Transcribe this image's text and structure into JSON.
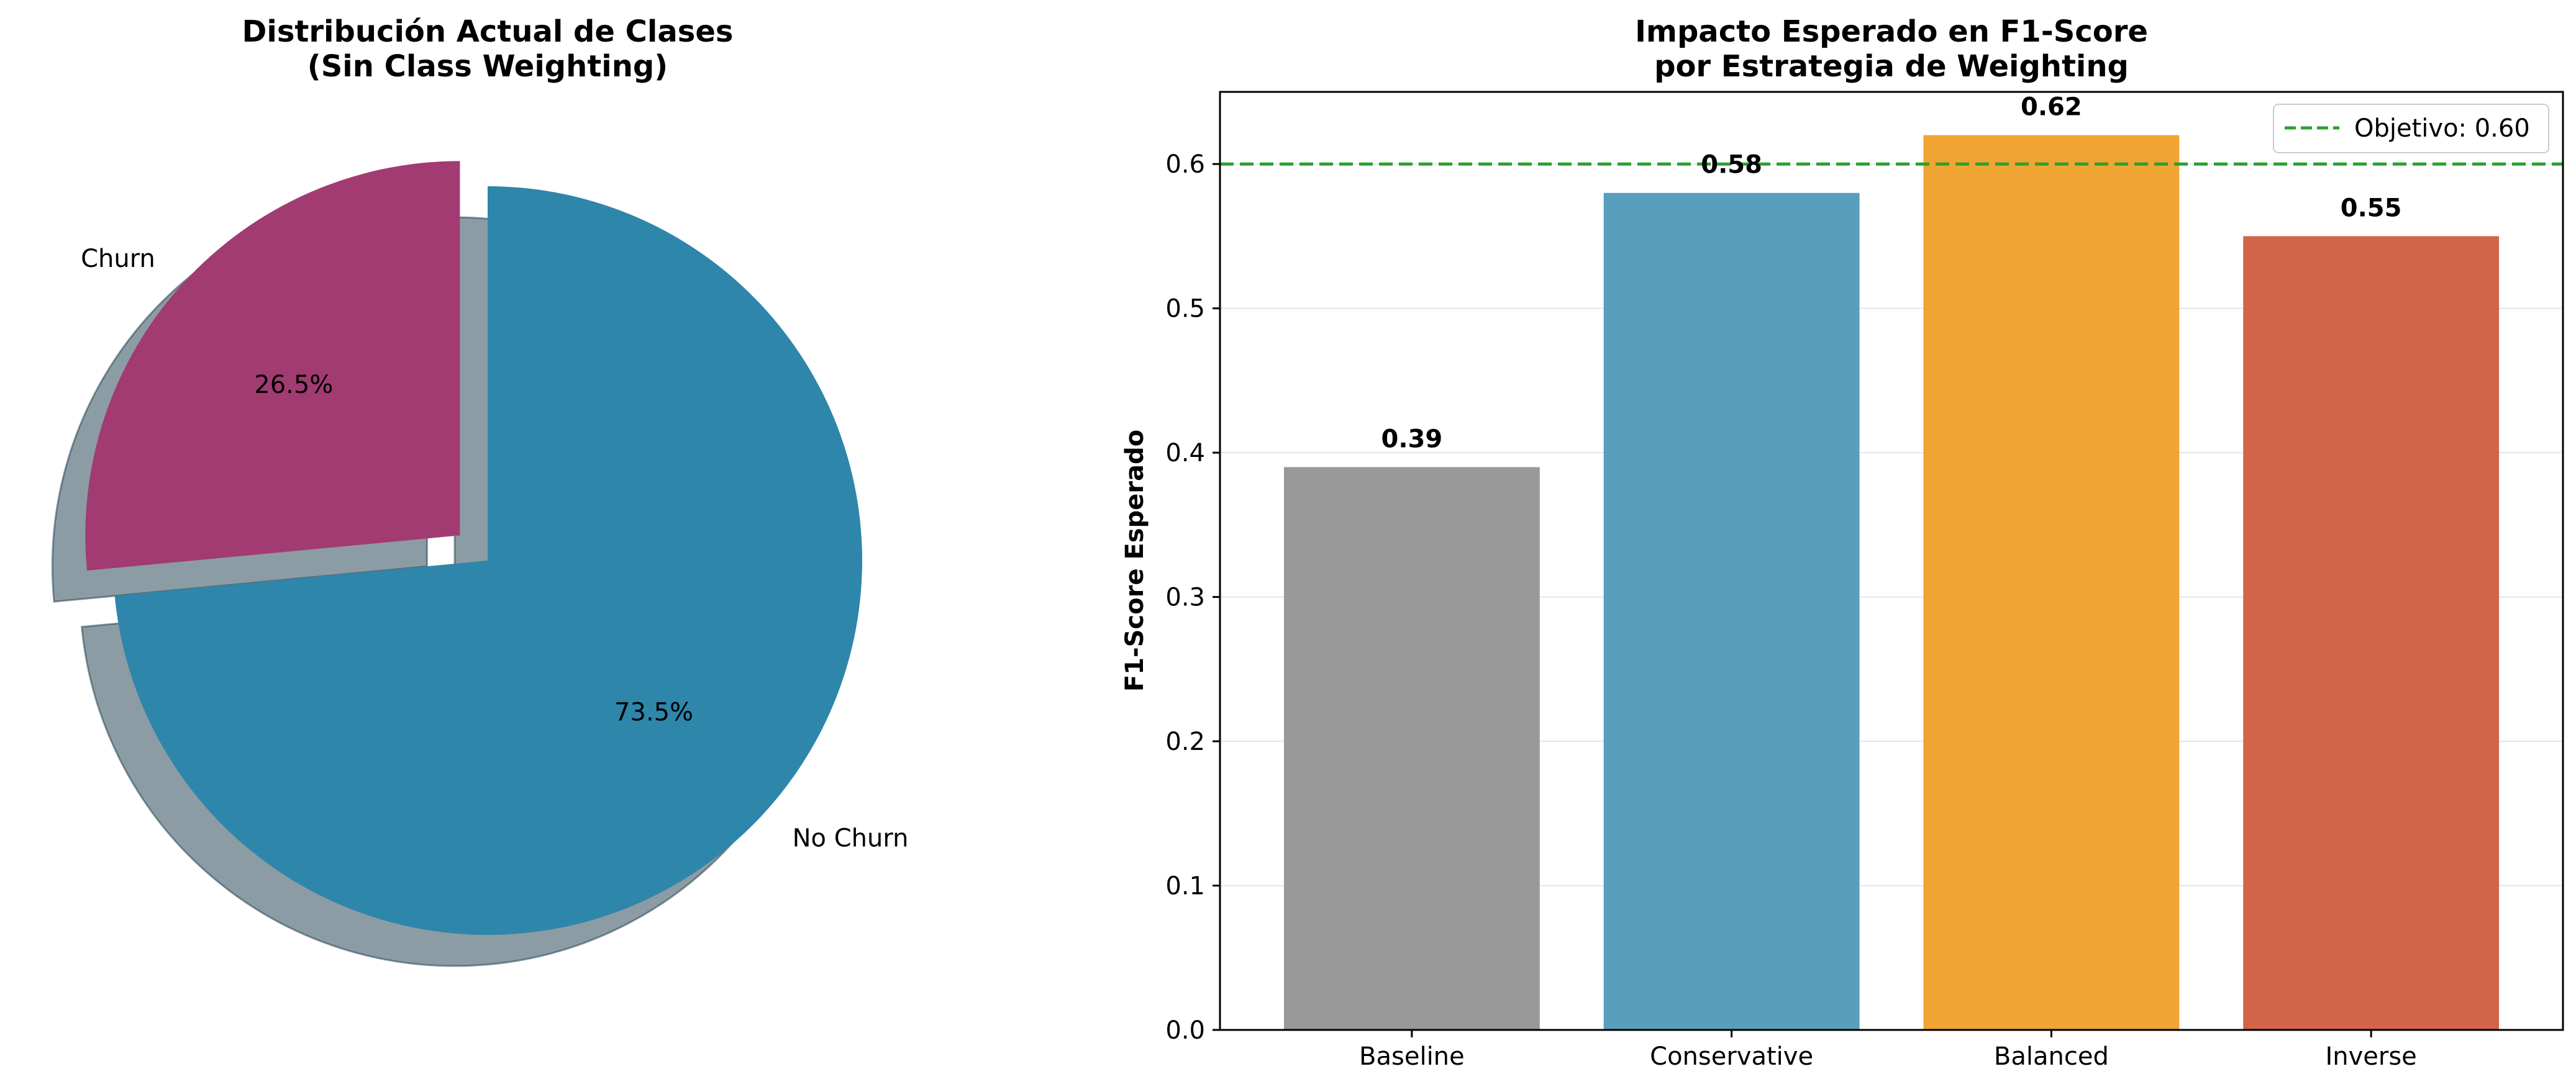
{
  "chart_data": [
    {
      "type": "pie",
      "title_lines": [
        "Distribución Actual de Clases",
        "(Sin Class Weighting)"
      ],
      "labels": [
        "No Churn",
        "Churn"
      ],
      "values": [
        73.5,
        26.5
      ],
      "percent_labels": [
        "73.5%",
        "26.5%"
      ],
      "colors": [
        "#2e86ab",
        "#a23b72"
      ],
      "explode": [
        0,
        0.1
      ],
      "shadow": true,
      "start_angle_deg": 90
    },
    {
      "type": "bar",
      "title_lines": [
        "Impacto Esperado en F1-Score",
        "por Estrategia de Weighting"
      ],
      "categories": [
        "Baseline",
        "Conservative",
        "Balanced",
        "Inverse"
      ],
      "values": [
        0.39,
        0.58,
        0.62,
        0.55
      ],
      "value_labels": [
        "0.39",
        "0.58",
        "0.62",
        "0.55"
      ],
      "colors": [
        "#999999",
        "#589ebd",
        "#f0a433",
        "#d2644a"
      ],
      "xlabel": "",
      "ylabel": "F1-Score Esperado",
      "ylim": [
        0,
        0.65
      ],
      "yticks": [
        0.0,
        0.1,
        0.2,
        0.3,
        0.4,
        0.5,
        0.6
      ],
      "ytick_labels": [
        "0.0",
        "0.1",
        "0.2",
        "0.3",
        "0.4",
        "0.5",
        "0.6"
      ],
      "grid": true,
      "reference_line": {
        "value": 0.6,
        "label": "Objetivo: 0.60",
        "color": "#2ca02c",
        "style": "dashed"
      },
      "legend_position": "top-right"
    }
  ]
}
